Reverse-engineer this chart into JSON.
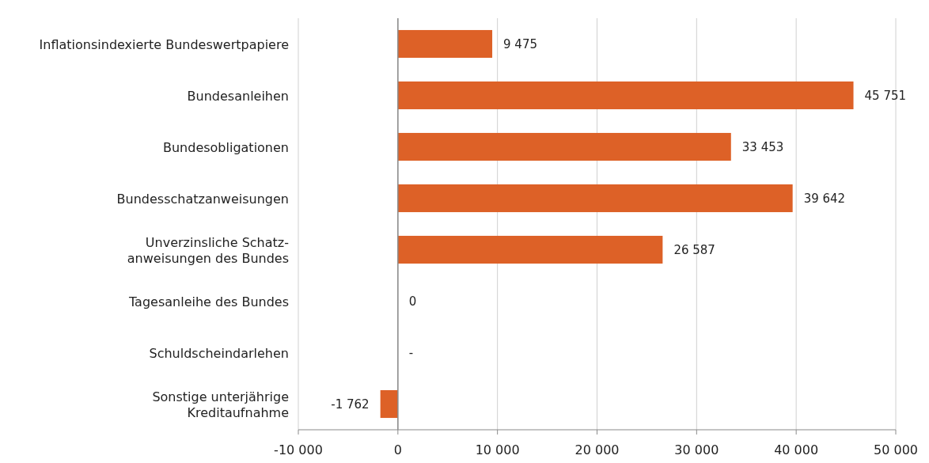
{
  "chart_data": {
    "type": "bar",
    "orientation": "horizontal",
    "categories": [
      "Inflationsindexierte Bundeswertpapiere",
      "Bundesanleihen",
      "Bundesobligationen",
      "Bundesschatzanweisungen",
      "Unverzinsliche Schatz-\nanweisungen des Bundes",
      "Tagesanleihe des Bundes",
      "Schuldscheindarlehen",
      "Sonstige unterjährige\nKreditaufnahme"
    ],
    "values": [
      9475,
      45751,
      33453,
      39642,
      26587,
      0,
      null,
      -1762
    ],
    "value_labels": [
      "9 475",
      "45 751",
      "33 453",
      "39 642",
      "26 587",
      "0",
      "-",
      "-1 762"
    ],
    "color": "#dd6127",
    "xlim": [
      -10000,
      50000
    ],
    "xticks": [
      {
        "value": -10000,
        "label": "-10 000"
      },
      0,
      {
        "value": 10000,
        "label": "10 000"
      },
      {
        "value": 20000,
        "label": "20 000"
      },
      {
        "value": 30000,
        "label": "30 000"
      },
      {
        "value": 40000,
        "label": "40 000"
      },
      {
        "value": 50000,
        "label": "50 000"
      }
    ],
    "grid": "x"
  }
}
